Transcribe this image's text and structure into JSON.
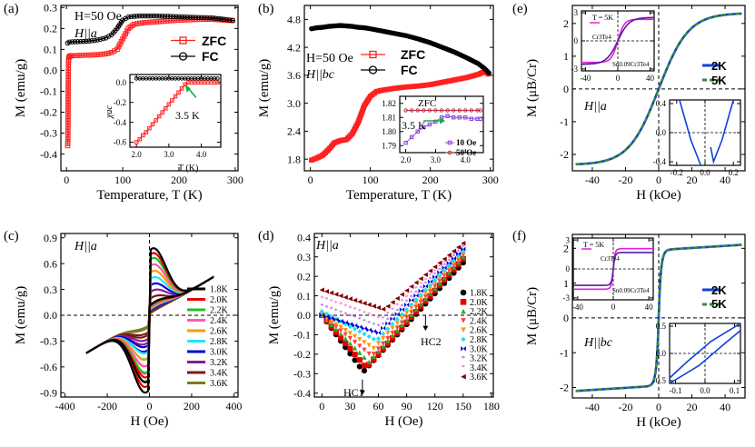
{
  "chart_data": [
    {
      "panel": "(a)",
      "type": "line",
      "xlabel": "Temperature,  T (K)",
      "ylabel": "M (emu/g)",
      "xlim": [
        -10,
        305
      ],
      "ylim": [
        -0.48,
        0.31
      ],
      "xticks": [
        0,
        100,
        200,
        300
      ],
      "yticks": [
        -0.4,
        -0.3,
        -0.2,
        -0.1,
        0.0,
        0.1,
        0.2,
        0.3
      ],
      "texts": [
        "H=50 Oe",
        "H||a"
      ],
      "series": [
        {
          "name": "ZFC",
          "color": "#ff2020",
          "marker": "square",
          "x": [
            2,
            2.5,
            3,
            3.5,
            4,
            5,
            6,
            8,
            10,
            15,
            20,
            30,
            40,
            50,
            60,
            70,
            80,
            90,
            100,
            110,
            120,
            130,
            140,
            150,
            160,
            180,
            200,
            220,
            240,
            260,
            280,
            300
          ],
          "y": [
            -0.36,
            -0.34,
            -0.1,
            0.04,
            0.06,
            0.065,
            0.068,
            0.07,
            0.07,
            0.07,
            0.071,
            0.072,
            0.073,
            0.074,
            0.076,
            0.079,
            0.085,
            0.1,
            0.15,
            0.2,
            0.22,
            0.225,
            0.228,
            0.23,
            0.232,
            0.236,
            0.24,
            0.242,
            0.244,
            0.244,
            0.24,
            0.237
          ]
        },
        {
          "name": "FC",
          "color": "#000000",
          "marker": "circle",
          "x": [
            2,
            5,
            10,
            20,
            30,
            40,
            50,
            60,
            70,
            80,
            90,
            100,
            110,
            120,
            130,
            140,
            160,
            180,
            200,
            220,
            240,
            260,
            280,
            300
          ],
          "y": [
            0.13,
            0.135,
            0.136,
            0.137,
            0.138,
            0.14,
            0.143,
            0.148,
            0.155,
            0.17,
            0.2,
            0.24,
            0.255,
            0.258,
            0.26,
            0.26,
            0.26,
            0.258,
            0.256,
            0.254,
            0.252,
            0.25,
            0.244,
            0.237
          ]
        }
      ],
      "inset": {
        "xlabel": "T (K)",
        "ylabel": "χ_ac",
        "xlim": [
          1.8,
          4.6
        ],
        "ylim": [
          -0.65,
          0.08
        ],
        "xticks": [
          2.0,
          3.0,
          4.0
        ],
        "yticks": [
          -0.6,
          -0.4,
          -0.2,
          0.0
        ],
        "annotation": "3.5 K",
        "series": [
          {
            "name": "chi_zfc",
            "color": "#ff2020",
            "marker": "square",
            "x": [
              2.0,
              2.1,
              2.2,
              2.3,
              2.4,
              2.5,
              2.6,
              2.7,
              2.8,
              2.9,
              3.0,
              3.1,
              3.2,
              3.3,
              3.4,
              3.5,
              3.6,
              3.7,
              3.8,
              3.9,
              4.0,
              4.1,
              4.2,
              4.3,
              4.4,
              4.5
            ],
            "y": [
              -0.6,
              -0.57,
              -0.53,
              -0.5,
              -0.46,
              -0.42,
              -0.38,
              -0.34,
              -0.3,
              -0.26,
              -0.22,
              -0.18,
              -0.14,
              -0.1,
              -0.06,
              -0.02,
              0.0,
              0.0,
              0.0,
              0.0,
              0.0,
              0.0,
              0.0,
              0.0,
              0.0,
              0.0
            ]
          },
          {
            "name": "chi_fc",
            "color": "#000000",
            "marker": "circle",
            "x": [
              2.0,
              2.1,
              2.2,
              2.3,
              2.4,
              2.5,
              2.6,
              2.7,
              2.8,
              2.9,
              3.0,
              3.1,
              3.2,
              3.3,
              3.4,
              3.5,
              3.6,
              3.7,
              3.8,
              3.9,
              4.0,
              4.1,
              4.2,
              4.3,
              4.4,
              4.5
            ],
            "y": [
              0.04,
              0.04,
              0.04,
              0.04,
              0.04,
              0.04,
              0.04,
              0.04,
              0.04,
              0.04,
              0.04,
              0.04,
              0.04,
              0.04,
              0.04,
              0.04,
              0.04,
              0.04,
              0.04,
              0.04,
              0.04,
              0.04,
              0.04,
              0.04,
              0.04,
              0.04
            ]
          }
        ]
      }
    },
    {
      "panel": "(b)",
      "type": "line",
      "xlabel": "Temperature,  T (K)",
      "ylabel": "M (emu/g)",
      "xlim": [
        -10,
        305
      ],
      "ylim": [
        1.55,
        5.1
      ],
      "xticks": [
        0,
        100,
        200,
        300
      ],
      "yticks": [
        1.8,
        2.4,
        3.0,
        3.6,
        4.2,
        4.8
      ],
      "texts": [
        "H=50 Oe",
        "H||bc"
      ],
      "series": [
        {
          "name": "ZFC",
          "color": "#ff2020",
          "marker": "square",
          "x": [
            2,
            10,
            20,
            30,
            40,
            50,
            60,
            70,
            80,
            90,
            100,
            110,
            120,
            140,
            160,
            180,
            200,
            220,
            240,
            260,
            280,
            290,
            300
          ],
          "y": [
            1.78,
            1.82,
            1.88,
            2.0,
            2.15,
            2.2,
            2.22,
            2.35,
            2.6,
            2.95,
            3.15,
            3.25,
            3.28,
            3.32,
            3.35,
            3.37,
            3.4,
            3.45,
            3.5,
            3.55,
            3.62,
            3.68,
            3.6
          ]
        },
        {
          "name": "FC",
          "color": "#000000",
          "marker": "circle",
          "x": [
            2,
            10,
            20,
            30,
            40,
            50,
            60,
            70,
            80,
            90,
            100,
            120,
            140,
            160,
            180,
            200,
            220,
            240,
            260,
            280,
            290,
            300
          ],
          "y": [
            4.6,
            4.62,
            4.63,
            4.65,
            4.66,
            4.67,
            4.66,
            4.65,
            4.63,
            4.62,
            4.6,
            4.55,
            4.5,
            4.45,
            4.38,
            4.3,
            4.2,
            4.1,
            3.98,
            3.85,
            3.75,
            3.62
          ]
        }
      ],
      "inset": {
        "title": "ZFC",
        "annotation": "3.5 K",
        "xlim": [
          1.8,
          4.6
        ],
        "ylim": [
          1.785,
          1.825
        ],
        "xticks": [
          2.0,
          3.0,
          4.0
        ],
        "yticks": [
          1.79,
          1.8,
          1.81,
          1.82
        ],
        "series": [
          {
            "name": "10 Oe",
            "color": "#8a3fe0",
            "marker": "square",
            "x": [
              2.0,
              2.2,
              2.4,
              2.6,
              2.8,
              3.0,
              3.2,
              3.4,
              3.6,
              3.8,
              4.0,
              4.2,
              4.4,
              4.5
            ],
            "y": [
              1.792,
              1.796,
              1.8,
              1.803,
              1.805,
              1.807,
              1.81,
              1.811,
              1.81,
              1.81,
              1.81,
              1.809,
              1.809,
              1.809
            ]
          },
          {
            "name": "50 Oe",
            "color": "#c0304c",
            "marker": "circle",
            "x": [
              2.0,
              2.2,
              2.4,
              2.6,
              2.8,
              3.0,
              3.2,
              3.4,
              3.6,
              3.8,
              4.0,
              4.2,
              4.4,
              4.5
            ],
            "y": [
              1.815,
              1.815,
              1.815,
              1.815,
              1.815,
              1.815,
              1.815,
              1.815,
              1.815,
              1.815,
              1.815,
              1.815,
              1.815,
              1.815
            ]
          }
        ]
      }
    },
    {
      "panel": "(c)",
      "type": "line",
      "xlabel": "H (Oe)",
      "ylabel": "M (emu/g)",
      "xlim": [
        -420,
        420
      ],
      "ylim": [
        -0.95,
        0.95
      ],
      "xticks": [
        -400,
        -200,
        0,
        200,
        400
      ],
      "yticks": [
        -0.9,
        -0.6,
        -0.3,
        0.0,
        0.3,
        0.6,
        0.9
      ],
      "texts": [
        "H||a"
      ],
      "series": [
        {
          "name": "1.8K",
          "color": "#000000",
          "mpeak": 0.8
        },
        {
          "name": "2.0K",
          "color": "#e80000",
          "mpeak": 0.74
        },
        {
          "name": "2.2K",
          "color": "#20c020",
          "mpeak": 0.68
        },
        {
          "name": "2.4K",
          "color": "#ff5ab4",
          "mpeak": 0.6
        },
        {
          "name": "2.6K",
          "color": "#ff9a00",
          "mpeak": 0.52
        },
        {
          "name": "2.8K",
          "color": "#20e8f0",
          "mpeak": 0.44
        },
        {
          "name": "3.0K",
          "color": "#0000d8",
          "mpeak": 0.36
        },
        {
          "name": "3.2K",
          "color": "#8a1a8a",
          "mpeak": 0.28
        },
        {
          "name": "3.4K",
          "color": "#7a1818",
          "mpeak": 0.2
        },
        {
          "name": "3.6K",
          "color": "#7a7a1e",
          "mpeak": 0.12
        }
      ]
    },
    {
      "panel": "(d)",
      "type": "scatter",
      "xlabel": "H (Oe)",
      "ylabel": "M (emu/g)",
      "xlim": [
        -8,
        182
      ],
      "ylim": [
        -0.42,
        0.42
      ],
      "xticks": [
        0,
        30,
        60,
        90,
        120,
        150,
        180
      ],
      "yticks": [
        -0.4,
        -0.3,
        -0.2,
        -0.1,
        0.0,
        0.1,
        0.2,
        0.3,
        0.4
      ],
      "texts": [
        "H||a",
        "H_C1",
        "H_C2"
      ],
      "series": [
        {
          "name": "1.8K",
          "color": "#000000",
          "marker": "circle",
          "min": -0.29,
          "hmin": 44,
          "end": 0.27
        },
        {
          "name": "2.0K",
          "color": "#e80000",
          "marker": "square",
          "min": -0.27,
          "hmin": 47,
          "end": 0.29
        },
        {
          "name": "2.2K",
          "color": "#20b020",
          "marker": "triangle",
          "min": -0.24,
          "hmin": 50,
          "end": 0.3
        },
        {
          "name": "2.4K",
          "color": "#ff4040",
          "marker": "triangle-down",
          "min": -0.21,
          "hmin": 53,
          "end": 0.31
        },
        {
          "name": "2.6K",
          "color": "#ff9a00",
          "marker": "triangle-down",
          "min": -0.17,
          "hmin": 55,
          "end": 0.32
        },
        {
          "name": "2.8K",
          "color": "#20e0f0",
          "marker": "diamond",
          "min": -0.13,
          "hmin": 58,
          "end": 0.33
        },
        {
          "name": "3.0K",
          "color": "#0000d8",
          "marker": "bowtie",
          "min": -0.09,
          "hmin": 60,
          "end": 0.34
        },
        {
          "name": "3.2K",
          "color": "#8a2be2",
          "marker": "star",
          "min": -0.06,
          "hmin": 62,
          "end": 0.35
        },
        {
          "name": "3.4K",
          "color": "#ff30c0",
          "marker": "star",
          "min": -0.02,
          "hmin": 64,
          "end": 0.36
        },
        {
          "name": "3.6K",
          "color": "#800000",
          "marker": "triangle-left",
          "min": 0.03,
          "hmin": 66,
          "end": 0.37
        }
      ]
    },
    {
      "panel": "(e)",
      "type": "line",
      "xlabel": "H (kOe)",
      "ylabel": "M (μB/Cr)",
      "xlim": [
        -52,
        52
      ],
      "ylim": [
        -2.5,
        2.55
      ],
      "xticks": [
        -40,
        -20,
        0,
        20,
        40
      ],
      "yticks": [
        -2,
        -1,
        0,
        1,
        2
      ],
      "texts": [
        "H||a"
      ],
      "series": [
        {
          "name": "2K",
          "color": "#1040d8",
          "style": "solid",
          "msat": 2.3,
          "hsat": 40
        },
        {
          "name": "5K",
          "color": "#3a8a3a",
          "style": "dash",
          "msat": 2.3,
          "hsat": 40
        }
      ],
      "inset_top": {
        "title": "T = 5K",
        "xlim": [
          -45,
          45
        ],
        "ylim": [
          -3.2,
          3.2
        ],
        "xticks": [
          -40,
          0,
          40
        ],
        "yticks": [
          -3,
          0,
          3
        ],
        "series": [
          {
            "name": "Cr3Te4",
            "color": "#e020e0",
            "msat": 2.3,
            "hsat": 20
          },
          {
            "name": "Sn0.09Cr3Te4",
            "color": "#5a1aa0",
            "msat": 2.5,
            "hsat": 35
          }
        ]
      },
      "inset_bottom": {
        "xlim": [
          -0.25,
          0.25
        ],
        "ylim": [
          -0.45,
          0.45
        ],
        "xticks": [
          -0.2,
          0.0,
          0.2
        ],
        "yticks": [
          -0.4,
          0.0,
          0.4
        ]
      }
    },
    {
      "panel": "(f)",
      "type": "line",
      "xlabel": "H (kOe)",
      "ylabel": "M (μB/Cr)",
      "xlim": [
        -52,
        52
      ],
      "ylim": [
        -2.3,
        2.4
      ],
      "xticks": [
        -40,
        -20,
        0,
        20,
        40
      ],
      "yticks": [
        -2,
        -1,
        0,
        1,
        2
      ],
      "texts": [
        "H||bc"
      ],
      "series": [
        {
          "name": "2K",
          "color": "#1040d8",
          "style": "solid",
          "msat": 1.95
        },
        {
          "name": "5K",
          "color": "#3a8a3a",
          "style": "dash",
          "msat": 1.95
        }
      ],
      "inset_top": {
        "title": "T = 5K",
        "xlim": [
          -45,
          45
        ],
        "ylim": [
          -3.2,
          3.2
        ],
        "xticks": [
          -40,
          0,
          40
        ],
        "yticks": [
          -3,
          0,
          3
        ],
        "series": [
          {
            "name": "Cr3Te4",
            "color": "#e020e0",
            "msat": 2.1
          },
          {
            "name": "Sn0.09Cr3Te4",
            "color": "#5a1aa0",
            "msat": 1.7
          }
        ]
      },
      "inset_bottom": {
        "xlim": [
          -0.12,
          0.12
        ],
        "ylim": [
          -0.55,
          0.55
        ],
        "xticks": [
          -0.1,
          0.0,
          0.1
        ],
        "yticks": [
          -0.5,
          0.0,
          0.5
        ]
      }
    }
  ],
  "labels": {
    "a": "(a)",
    "b": "(b)",
    "c": "(c)",
    "d": "(d)",
    "e": "(e)",
    "f": "(f)",
    "H50": "H=50 Oe",
    "Ha": "H||a",
    "Hbc": "H||bc",
    "zfc": "ZFC",
    "fc": "FC",
    "tac": "3.5 K",
    "T_K": "T (K)",
    "chi": "χac",
    "oe10": "10 Oe",
    "oe50": "50 Oe",
    "hc1": "HC1",
    "hc2": "HC2",
    "t5k": "T = 5K",
    "cr3te4": "Cr3Te4",
    "sncr3te4": "Sn0.09Cr3Te4",
    "k2": "2K",
    "k5": "5K"
  }
}
